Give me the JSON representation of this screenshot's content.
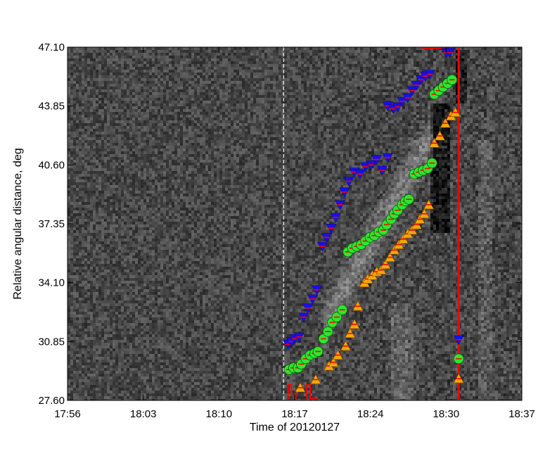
{
  "chart_data": {
    "type": "scatter",
    "xlabel": "Time of 20120127",
    "ylabel": "Relative angular distance, deg",
    "x_tick_labels": [
      "17:56",
      "18:03",
      "18:10",
      "18:17",
      "18:24",
      "18:30",
      "18:37"
    ],
    "y_tick_labels": [
      "27.60",
      "30.85",
      "34.10",
      "37.35",
      "40.60",
      "43.85",
      "47.10"
    ],
    "xlim": [
      "17:56",
      "18:37"
    ],
    "ylim": [
      27.6,
      47.1
    ],
    "background": "grayscale running-difference time-distance map",
    "reference_line_time": "18:15.5",
    "vertical_marker_time": "18:31.3",
    "series": [
      {
        "marker": "blue inverted triangle",
        "color": "#1a10e6",
        "points": [
          [
            "18:15.9",
            30.7
          ],
          [
            "18:16.2",
            30.85
          ],
          [
            "18:16.5",
            31.0
          ],
          [
            "18:16.9",
            31.1
          ],
          [
            "18:17.3",
            32.2
          ],
          [
            "18:17.7",
            32.7
          ],
          [
            "18:18.1",
            33.2
          ],
          [
            "18:18.5",
            33.7
          ],
          [
            "18:19.0",
            36.1
          ],
          [
            "18:19.4",
            36.6
          ],
          [
            "18:19.8",
            37.1
          ],
          [
            "18:20.2",
            37.7
          ],
          [
            "18:20.6",
            38.4
          ],
          [
            "18:21.0",
            39.1
          ],
          [
            "18:21.4",
            39.7
          ],
          [
            "18:21.9",
            40.2
          ],
          [
            "18:22.4",
            40.1
          ],
          [
            "18:22.9",
            40.5
          ],
          [
            "18:23.4",
            40.6
          ],
          [
            "18:23.9",
            40.9
          ],
          [
            "18:24.4",
            40.3
          ],
          [
            "18:24.9",
            41.0
          ],
          [
            "18:24.9",
            43.85
          ],
          [
            "18:25.4",
            43.7
          ],
          [
            "18:25.8",
            43.8
          ],
          [
            "18:26.2",
            44.1
          ],
          [
            "18:26.7",
            44.3
          ],
          [
            "18:27.1",
            44.7
          ],
          [
            "18:27.5",
            45.0
          ],
          [
            "18:27.9",
            45.3
          ],
          [
            "18:28.3",
            45.5
          ],
          [
            "18:28.7",
            45.6
          ],
          [
            "18:30.2",
            46.8
          ],
          [
            "18:30.5",
            46.8
          ],
          [
            "18:31.3",
            30.95
          ]
        ]
      },
      {
        "marker": "green circle",
        "color": "#2ee62e",
        "points": [
          [
            "18:16.0",
            29.3
          ],
          [
            "18:16.4",
            29.4
          ],
          [
            "18:16.8",
            29.4
          ],
          [
            "18:17.1",
            29.6
          ],
          [
            "18:17.5",
            29.9
          ],
          [
            "18:17.9",
            30.1
          ],
          [
            "18:18.3",
            30.2
          ],
          [
            "18:18.6",
            30.3
          ],
          [
            "18:19.1",
            31.0
          ],
          [
            "18:19.5",
            31.4
          ],
          [
            "18:19.9",
            31.9
          ],
          [
            "18:20.3",
            32.2
          ],
          [
            "18:20.8",
            32.6
          ],
          [
            "18:21.3",
            35.8
          ],
          [
            "18:21.7",
            36.0
          ],
          [
            "18:22.1",
            36.1
          ],
          [
            "18:22.5",
            36.2
          ],
          [
            "18:22.9",
            36.4
          ],
          [
            "18:23.3",
            36.6
          ],
          [
            "18:23.7",
            36.7
          ],
          [
            "18:24.1",
            36.9
          ],
          [
            "18:24.5",
            37.0
          ],
          [
            "18:24.8",
            37.3
          ],
          [
            "18:25.2",
            37.6
          ],
          [
            "18:25.5",
            37.9
          ],
          [
            "18:25.8",
            38.1
          ],
          [
            "18:26.2",
            38.4
          ],
          [
            "18:26.5",
            38.6
          ],
          [
            "18:26.8",
            38.7
          ],
          [
            "18:27.3",
            40.1
          ],
          [
            "18:27.7",
            40.2
          ],
          [
            "18:28.1",
            40.3
          ],
          [
            "18:28.5",
            40.4
          ],
          [
            "18:28.9",
            40.7
          ],
          [
            "18:29.1",
            44.5
          ],
          [
            "18:29.5",
            44.7
          ],
          [
            "18:29.9",
            44.9
          ],
          [
            "18:30.3",
            45.1
          ],
          [
            "18:30.7",
            45.3
          ],
          [
            "18:31.3",
            29.9
          ]
        ]
      },
      {
        "marker": "orange triangle",
        "color": "#f5a800",
        "points": [
          [
            "18:17.0",
            28.3
          ],
          [
            "18:18.4",
            28.75
          ],
          [
            "18:19.6",
            29.5
          ],
          [
            "18:20.0",
            29.7
          ],
          [
            "18:20.4",
            30.1
          ],
          [
            "18:21.1",
            30.6
          ],
          [
            "18:21.5",
            31.3
          ],
          [
            "18:21.9",
            31.8
          ],
          [
            "18:22.2",
            32.8
          ],
          [
            "18:22.8",
            34.1
          ],
          [
            "18:23.1",
            34.3
          ],
          [
            "18:23.5",
            34.5
          ],
          [
            "18:23.9",
            34.7
          ],
          [
            "18:24.3",
            34.8
          ],
          [
            "18:24.7",
            35.1
          ],
          [
            "18:25.1",
            35.5
          ],
          [
            "18:25.5",
            35.9
          ],
          [
            "18:25.9",
            36.2
          ],
          [
            "18:26.3",
            36.5
          ],
          [
            "18:26.7",
            36.8
          ],
          [
            "18:27.1",
            37.0
          ],
          [
            "18:27.5",
            37.3
          ],
          [
            "18:27.8",
            37.6
          ],
          [
            "18:28.2",
            37.9
          ],
          [
            "18:28.6",
            38.4
          ],
          [
            "18:29.1",
            41.8
          ],
          [
            "18:29.6",
            42.2
          ],
          [
            "18:30.1",
            42.9
          ],
          [
            "18:30.6",
            43.3
          ],
          [
            "18:31.0",
            43.5
          ],
          [
            "18:31.3",
            28.8
          ]
        ]
      }
    ]
  }
}
